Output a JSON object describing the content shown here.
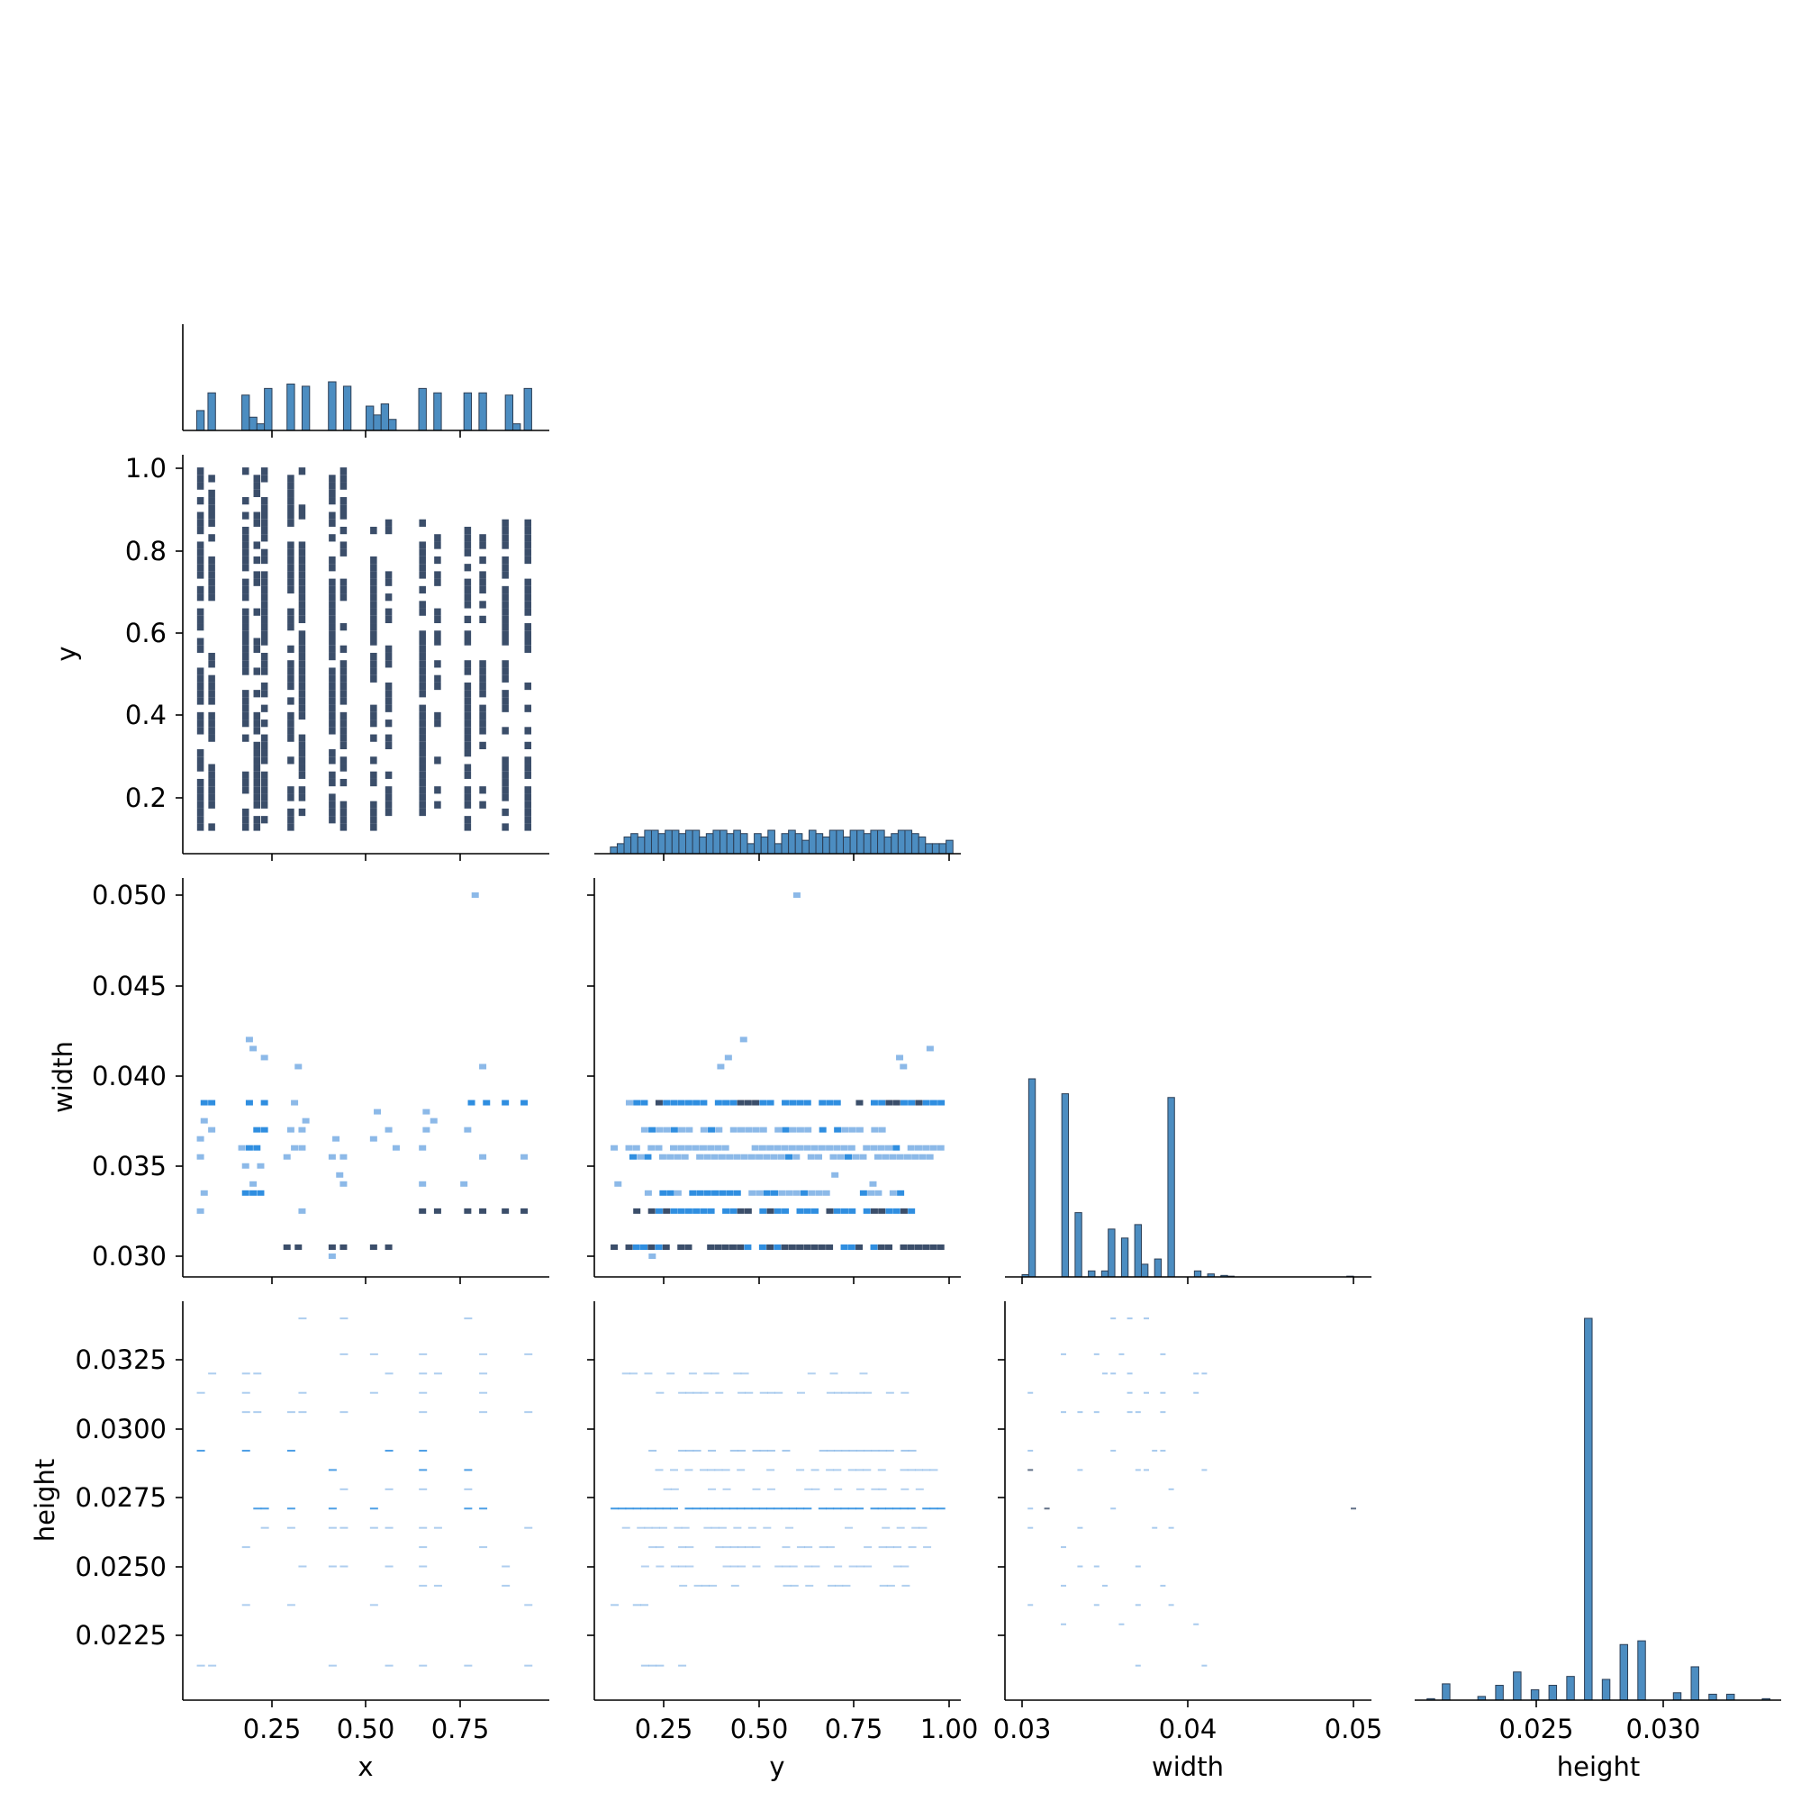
{
  "chart_data": [
    {
      "type": "histogram",
      "id": "hist-x",
      "variable": "x",
      "bins": [
        {
          "lo": 0.05,
          "hi": 0.07,
          "count": 9
        },
        {
          "lo": 0.08,
          "hi": 0.1,
          "count": 17
        },
        {
          "lo": 0.17,
          "hi": 0.19,
          "count": 16
        },
        {
          "lo": 0.19,
          "hi": 0.21,
          "count": 6
        },
        {
          "lo": 0.21,
          "hi": 0.23,
          "count": 3
        },
        {
          "lo": 0.23,
          "hi": 0.25,
          "count": 19
        },
        {
          "lo": 0.29,
          "hi": 0.31,
          "count": 21
        },
        {
          "lo": 0.33,
          "hi": 0.35,
          "count": 20
        },
        {
          "lo": 0.4,
          "hi": 0.42,
          "count": 22
        },
        {
          "lo": 0.44,
          "hi": 0.46,
          "count": 20
        },
        {
          "lo": 0.5,
          "hi": 0.52,
          "count": 11
        },
        {
          "lo": 0.52,
          "hi": 0.54,
          "count": 7
        },
        {
          "lo": 0.54,
          "hi": 0.56,
          "count": 12
        },
        {
          "lo": 0.56,
          "hi": 0.58,
          "count": 5
        },
        {
          "lo": 0.64,
          "hi": 0.66,
          "count": 19
        },
        {
          "lo": 0.68,
          "hi": 0.7,
          "count": 17
        },
        {
          "lo": 0.76,
          "hi": 0.78,
          "count": 17
        },
        {
          "lo": 0.8,
          "hi": 0.82,
          "count": 17
        },
        {
          "lo": 0.87,
          "hi": 0.89,
          "count": 16
        },
        {
          "lo": 0.89,
          "hi": 0.91,
          "count": 3
        },
        {
          "lo": 0.92,
          "hi": 0.94,
          "count": 19
        }
      ]
    },
    {
      "type": "heatmap",
      "id": "joint-x-y",
      "x_variable": "x",
      "y_variable": "y",
      "cell_w": 0.018,
      "cell_h": 0.018,
      "column_xs": [
        0.06,
        0.09,
        0.18,
        0.21,
        0.23,
        0.3,
        0.33,
        0.41,
        0.44,
        0.52,
        0.56,
        0.65,
        0.69,
        0.77,
        0.81,
        0.87,
        0.93
      ],
      "color": "#3b4e6a"
    },
    {
      "type": "histogram",
      "id": "hist-y",
      "variable": "y",
      "bins_lo": 0.11,
      "bin_width": 0.018,
      "counts": [
        2,
        3,
        5,
        6,
        5,
        7,
        7,
        6,
        7,
        7,
        6,
        7,
        7,
        5,
        6,
        7,
        7,
        6,
        7,
        6,
        3,
        6,
        5,
        7,
        3,
        6,
        7,
        6,
        4,
        7,
        6,
        5,
        7,
        7,
        5,
        7,
        7,
        6,
        7,
        7,
        5,
        6,
        7,
        7,
        6,
        5,
        3,
        3,
        3,
        4
      ]
    },
    {
      "type": "heatmap",
      "id": "joint-x-width",
      "x_variable": "x",
      "y_variable": "width",
      "cells": [
        [
          0.06,
          0.0325,
          0.5
        ],
        [
          0.07,
          0.0335,
          0.5
        ],
        [
          0.06,
          0.0355,
          0.5
        ],
        [
          0.06,
          0.0365,
          0.5
        ],
        [
          0.07,
          0.0375,
          0.5
        ],
        [
          0.07,
          0.0385,
          0.7
        ],
        [
          0.09,
          0.0385,
          0.8
        ],
        [
          0.09,
          0.037,
          0.5
        ],
        [
          0.17,
          0.036,
          0.5
        ],
        [
          0.18,
          0.035,
          0.5
        ],
        [
          0.18,
          0.0335,
          0.8
        ],
        [
          0.2,
          0.0335,
          0.8
        ],
        [
          0.22,
          0.0335,
          0.7
        ],
        [
          0.19,
          0.036,
          0.6
        ],
        [
          0.21,
          0.036,
          0.6
        ],
        [
          0.19,
          0.0385,
          0.8
        ],
        [
          0.23,
          0.0385,
          0.8
        ],
        [
          0.21,
          0.037,
          0.6
        ],
        [
          0.23,
          0.037,
          0.6
        ],
        [
          0.19,
          0.042,
          0.5
        ],
        [
          0.2,
          0.0415,
          0.5
        ],
        [
          0.23,
          0.041,
          0.5
        ],
        [
          0.2,
          0.034,
          0.5
        ],
        [
          0.22,
          0.035,
          0.5
        ],
        [
          0.29,
          0.0305,
          0.9
        ],
        [
          0.32,
          0.0305,
          0.9
        ],
        [
          0.3,
          0.037,
          0.5
        ],
        [
          0.33,
          0.037,
          0.5
        ],
        [
          0.29,
          0.0355,
          0.5
        ],
        [
          0.31,
          0.036,
          0.5
        ],
        [
          0.33,
          0.036,
          0.5
        ],
        [
          0.31,
          0.0385,
          0.5
        ],
        [
          0.32,
          0.0405,
          0.5
        ],
        [
          0.34,
          0.0375,
          0.5
        ],
        [
          0.33,
          0.0325,
          0.5
        ],
        [
          0.41,
          0.0305,
          0.9
        ],
        [
          0.44,
          0.0305,
          0.9
        ],
        [
          0.41,
          0.03,
          0.5
        ],
        [
          0.41,
          0.0355,
          0.5
        ],
        [
          0.44,
          0.0355,
          0.5
        ],
        [
          0.43,
          0.0345,
          0.5
        ],
        [
          0.44,
          0.034,
          0.5
        ],
        [
          0.42,
          0.0365,
          0.5
        ],
        [
          0.52,
          0.0305,
          0.9
        ],
        [
          0.56,
          0.0305,
          0.9
        ],
        [
          0.52,
          0.0365,
          0.5
        ],
        [
          0.53,
          0.038,
          0.5
        ],
        [
          0.56,
          0.037,
          0.5
        ],
        [
          0.58,
          0.036,
          0.5
        ],
        [
          0.65,
          0.0325,
          0.9
        ],
        [
          0.69,
          0.0325,
          0.9
        ],
        [
          0.65,
          0.034,
          0.5
        ],
        [
          0.66,
          0.038,
          0.5
        ],
        [
          0.66,
          0.037,
          0.5
        ],
        [
          0.68,
          0.0375,
          0.5
        ],
        [
          0.65,
          0.036,
          0.5
        ],
        [
          0.77,
          0.0325,
          0.9
        ],
        [
          0.81,
          0.0325,
          0.9
        ],
        [
          0.78,
          0.0385,
          0.8
        ],
        [
          0.82,
          0.0385,
          0.8
        ],
        [
          0.77,
          0.037,
          0.5
        ],
        [
          0.76,
          0.034,
          0.5
        ],
        [
          0.81,
          0.0355,
          0.5
        ],
        [
          0.81,
          0.0405,
          0.5
        ],
        [
          0.79,
          0.05,
          0.5
        ],
        [
          0.87,
          0.0325,
          0.9
        ],
        [
          0.92,
          0.0325,
          0.9
        ],
        [
          0.87,
          0.0385,
          0.8
        ],
        [
          0.92,
          0.0385,
          0.8
        ],
        [
          0.92,
          0.0355,
          0.5
        ]
      ]
    },
    {
      "type": "heatmap",
      "id": "joint-y-width",
      "x_variable": "y",
      "y_variable": "width",
      "rows": [
        {
          "width": 0.0305,
          "range": [
            0.12,
            0.98
          ],
          "strength": 0.9
        },
        {
          "width": 0.0325,
          "range": [
            0.16,
            0.92
          ],
          "strength": 0.8
        },
        {
          "width": 0.0335,
          "range": [
            0.19,
            0.88
          ],
          "strength": 0.6
        },
        {
          "width": 0.0385,
          "range": [
            0.16,
            0.98
          ],
          "strength": 0.75
        },
        {
          "width": 0.037,
          "range": [
            0.2,
            0.85
          ],
          "strength": 0.5
        },
        {
          "width": 0.0355,
          "range": [
            0.15,
            0.96
          ],
          "strength": 0.5
        },
        {
          "width": 0.036,
          "range": [
            0.12,
            0.99
          ],
          "strength": 0.45
        }
      ],
      "extra_cells": [
        [
          0.6,
          0.05,
          0.5
        ],
        [
          0.46,
          0.042,
          0.5
        ],
        [
          0.95,
          0.0415,
          0.5
        ],
        [
          0.42,
          0.041,
          0.5
        ],
        [
          0.4,
          0.0405,
          0.5
        ],
        [
          0.87,
          0.041,
          0.5
        ],
        [
          0.88,
          0.0405,
          0.5
        ],
        [
          0.22,
          0.03,
          0.5
        ],
        [
          0.13,
          0.034,
          0.5
        ],
        [
          0.8,
          0.034,
          0.5
        ],
        [
          0.7,
          0.0345,
          0.5
        ]
      ]
    },
    {
      "type": "histogram",
      "id": "hist-width",
      "variable": "width",
      "bins": [
        {
          "lo": 0.03,
          "hi": 0.0304,
          "count": 3
        },
        {
          "lo": 0.0304,
          "hi": 0.0308,
          "count": 265
        },
        {
          "lo": 0.0324,
          "hi": 0.0328,
          "count": 245
        },
        {
          "lo": 0.0332,
          "hi": 0.0336,
          "count": 86
        },
        {
          "lo": 0.034,
          "hi": 0.0344,
          "count": 8
        },
        {
          "lo": 0.0348,
          "hi": 0.0352,
          "count": 8
        },
        {
          "lo": 0.0352,
          "hi": 0.0356,
          "count": 64
        },
        {
          "lo": 0.036,
          "hi": 0.0364,
          "count": 52
        },
        {
          "lo": 0.0368,
          "hi": 0.0372,
          "count": 70
        },
        {
          "lo": 0.0372,
          "hi": 0.0376,
          "count": 17
        },
        {
          "lo": 0.038,
          "hi": 0.0384,
          "count": 24
        },
        {
          "lo": 0.0388,
          "hi": 0.0392,
          "count": 240
        },
        {
          "lo": 0.0404,
          "hi": 0.0408,
          "count": 8
        },
        {
          "lo": 0.0412,
          "hi": 0.0416,
          "count": 4
        },
        {
          "lo": 0.042,
          "hi": 0.0424,
          "count": 2
        },
        {
          "lo": 0.0424,
          "hi": 0.0428,
          "count": 1
        },
        {
          "lo": 0.0496,
          "hi": 0.05,
          "count": 1
        }
      ]
    },
    {
      "type": "heatmap",
      "id": "joint-x-height",
      "x_variable": "x",
      "y_variable": "height",
      "row_heights": [
        0.0214,
        0.0236,
        0.0243,
        0.025,
        0.0257,
        0.0264,
        0.0271,
        0.0278,
        0.0285,
        0.0292,
        0.0306,
        0.0313,
        0.032,
        0.0327,
        0.034
      ],
      "column_xs": [
        0.06,
        0.09,
        0.18,
        0.21,
        0.23,
        0.3,
        0.33,
        0.41,
        0.44,
        0.52,
        0.56,
        0.65,
        0.69,
        0.77,
        0.81,
        0.87,
        0.93
      ]
    },
    {
      "type": "heatmap",
      "id": "joint-y-height",
      "x_variable": "y",
      "y_variable": "height",
      "rows": [
        {
          "height": 0.0271,
          "range": [
            0.12,
            0.99
          ],
          "strength": 0.7
        },
        {
          "height": 0.0292,
          "range": [
            0.2,
            0.92
          ],
          "strength": 0.45
        },
        {
          "height": 0.0285,
          "range": [
            0.12,
            0.98
          ],
          "strength": 0.3
        },
        {
          "height": 0.0236,
          "range": [
            0.12,
            0.22
          ],
          "strength": 0.4
        },
        {
          "height": 0.0214,
          "range": [
            0.2,
            0.32
          ],
          "strength": 0.35
        },
        {
          "height": 0.0243,
          "range": [
            0.3,
            0.9
          ],
          "strength": 0.25
        },
        {
          "height": 0.0313,
          "range": [
            0.2,
            0.9
          ],
          "strength": 0.25
        },
        {
          "height": 0.0264,
          "range": [
            0.15,
            0.95
          ],
          "strength": 0.2
        },
        {
          "height": 0.0257,
          "range": [
            0.2,
            0.95
          ],
          "strength": 0.2
        },
        {
          "height": 0.025,
          "range": [
            0.2,
            0.9
          ],
          "strength": 0.2
        },
        {
          "height": 0.0278,
          "range": [
            0.2,
            0.95
          ],
          "strength": 0.2
        },
        {
          "height": 0.032,
          "range": [
            0.15,
            0.8
          ],
          "strength": 0.2
        }
      ]
    },
    {
      "type": "heatmap",
      "id": "joint-width-height",
      "x_variable": "width",
      "y_variable": "height",
      "width_columns": [
        0.0305,
        0.0325,
        0.0335,
        0.0345,
        0.035,
        0.0355,
        0.036,
        0.0365,
        0.037,
        0.0375,
        0.038,
        0.0385,
        0.039,
        0.0405,
        0.041
      ],
      "height_rows": [
        0.0214,
        0.0229,
        0.0236,
        0.0243,
        0.025,
        0.0257,
        0.0264,
        0.0271,
        0.0278,
        0.0285,
        0.0292,
        0.0306,
        0.0313,
        0.032,
        0.0327,
        0.034
      ],
      "extra_cells": [
        [
          0.0305,
          0.0285
        ],
        [
          0.0315,
          0.0271
        ],
        [
          0.05,
          0.0271
        ]
      ]
    },
    {
      "type": "histogram",
      "id": "hist-height",
      "variable": "height",
      "bins": [
        {
          "lo": 0.0207,
          "hi": 0.021,
          "count": 2
        },
        {
          "lo": 0.0213,
          "hi": 0.0216,
          "count": 22
        },
        {
          "lo": 0.0227,
          "hi": 0.023,
          "count": 5
        },
        {
          "lo": 0.0234,
          "hi": 0.0237,
          "count": 20
        },
        {
          "lo": 0.0241,
          "hi": 0.0244,
          "count": 38
        },
        {
          "lo": 0.0248,
          "hi": 0.0251,
          "count": 14
        },
        {
          "lo": 0.0255,
          "hi": 0.0258,
          "count": 20
        },
        {
          "lo": 0.0262,
          "hi": 0.0265,
          "count": 32
        },
        {
          "lo": 0.0269,
          "hi": 0.0272,
          "count": 515
        },
        {
          "lo": 0.0276,
          "hi": 0.0279,
          "count": 28
        },
        {
          "lo": 0.0283,
          "hi": 0.0286,
          "count": 75
        },
        {
          "lo": 0.029,
          "hi": 0.0293,
          "count": 80
        },
        {
          "lo": 0.0304,
          "hi": 0.0307,
          "count": 10
        },
        {
          "lo": 0.0311,
          "hi": 0.0314,
          "count": 45
        },
        {
          "lo": 0.0318,
          "hi": 0.0321,
          "count": 8
        },
        {
          "lo": 0.0325,
          "hi": 0.0328,
          "count": 8
        },
        {
          "lo": 0.0339,
          "hi": 0.0342,
          "count": 2
        }
      ]
    }
  ],
  "axes": {
    "x_label": "x",
    "y_label": "y",
    "width_label": "width",
    "height_label": "height",
    "x_ticks": [
      "0.25",
      "0.50",
      "0.75"
    ],
    "y_ticks_x": [
      "0.25",
      "0.50",
      "0.75",
      "1.00"
    ],
    "width_ticks_x": [
      "0.03",
      "0.04",
      "0.05"
    ],
    "height_ticks_x": [
      "0.025",
      "0.030"
    ],
    "y_ticks_y": [
      "0.2",
      "0.4",
      "0.6",
      "0.8",
      "1.0"
    ],
    "width_ticks_y": [
      "0.030",
      "0.035",
      "0.040",
      "0.045",
      "0.050"
    ],
    "height_ticks_y": [
      "0.0225",
      "0.0250",
      "0.0275",
      "0.0300",
      "0.0325"
    ]
  },
  "colors": {
    "hist_fill": "#4c8dc1",
    "hist_edge": "#2c3e55",
    "heat_dark": "#3b4e6a",
    "heat_mid": "#2f8ee0",
    "heat_light": "#8cb9e8"
  }
}
